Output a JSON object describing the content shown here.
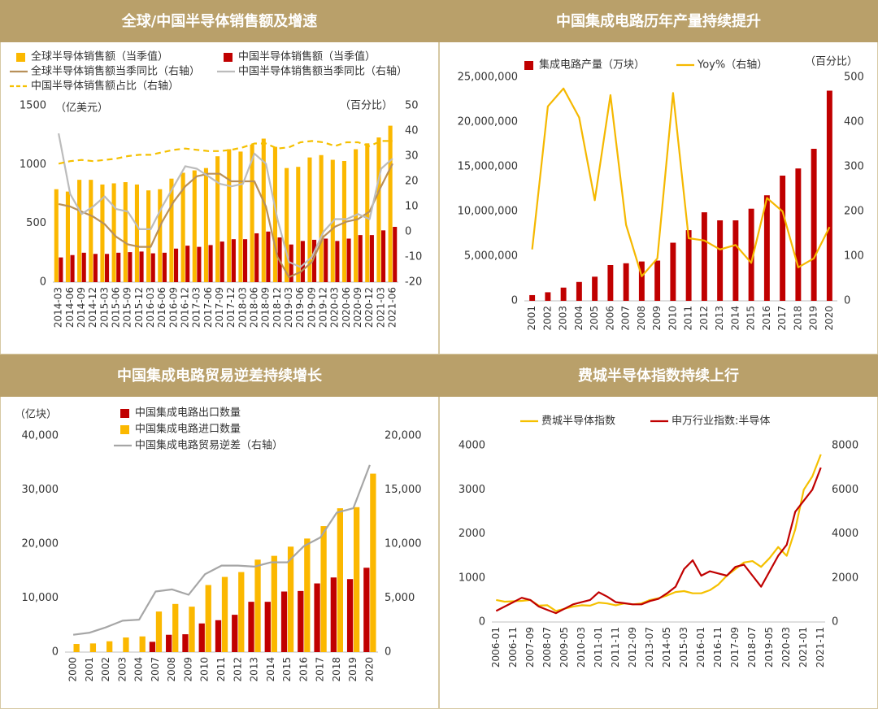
{
  "chart_data": [
    {
      "type": "bar-line",
      "title": "全球/中国半导体销售额及增速",
      "left_unit": "（亿美元）",
      "right_unit": "（百分比）",
      "categories": [
        "2014-03",
        "2014-06",
        "2014-09",
        "2014-12",
        "2015-03",
        "2015-06",
        "2015-09",
        "2015-12",
        "2016-03",
        "2016-06",
        "2016-09",
        "2016-12",
        "2017-03",
        "2017-06",
        "2017-09",
        "2017-12",
        "2018-03",
        "2018-06",
        "2018-09",
        "2018-12",
        "2019-03",
        "2019-06",
        "2019-09",
        "2019-12",
        "2020-03",
        "2020-06",
        "2020-09",
        "2020-12",
        "2021-03",
        "2021-06"
      ],
      "ylim": [
        0,
        1500
      ],
      "yticks": [
        0,
        500,
        1000,
        1500
      ],
      "y2lim": [
        -20,
        50
      ],
      "y2ticks": [
        -20,
        -10,
        0,
        10,
        20,
        30,
        40,
        50
      ],
      "series": [
        {
          "name": "全球半导体销售额（当季值）",
          "kind": "bar",
          "color": "#fbb800",
          "values": [
            790,
            770,
            870,
            870,
            830,
            840,
            850,
            830,
            780,
            790,
            880,
            930,
            950,
            970,
            1070,
            1130,
            1110,
            1170,
            1220,
            1150,
            970,
            980,
            1060,
            1080,
            1040,
            1030,
            1130,
            1180,
            1230,
            1330
          ]
        },
        {
          "name": "中国半导体销售额（当季值）",
          "kind": "bar",
          "color": "#c00000",
          "values": [
            210,
            230,
            250,
            240,
            240,
            250,
            255,
            260,
            245,
            250,
            285,
            310,
            300,
            315,
            345,
            365,
            365,
            415,
            430,
            380,
            320,
            350,
            360,
            370,
            350,
            370,
            400,
            400,
            440,
            470
          ]
        },
        {
          "name": "全球半导体销售额当季同比（右轴）",
          "kind": "line",
          "axis": "y2",
          "color": "#b8905a",
          "values": [
            11,
            10,
            8,
            6,
            3,
            -2,
            -5,
            -6,
            -6,
            4,
            12,
            18,
            22,
            23,
            23,
            20,
            20,
            20,
            10,
            -10,
            -18,
            -16,
            -12,
            -2,
            2,
            4,
            5,
            8,
            18,
            27
          ]
        },
        {
          "name": "中国半导体销售额当季同比（右轴）",
          "kind": "line",
          "axis": "y2",
          "color": "#bcbcbc",
          "values": [
            39,
            15,
            7,
            10,
            14,
            9,
            8,
            1,
            1,
            10,
            18,
            26,
            25,
            22,
            19,
            18,
            19,
            31,
            27,
            5,
            -12,
            -14,
            -10,
            0,
            5,
            5,
            7,
            5,
            25,
            29
          ]
        },
        {
          "name": "中国半导体销售额占比（右轴）",
          "kind": "line",
          "axis": "y2",
          "dash": true,
          "color": "#f5c000",
          "values": [
            27,
            28,
            28.5,
            28,
            28.5,
            29,
            30,
            30.5,
            30.5,
            31.5,
            32.5,
            33,
            32.5,
            32,
            32,
            32.5,
            33.5,
            35,
            35,
            33,
            33.5,
            35.5,
            36,
            35.5,
            34,
            35.5,
            35.5,
            34,
            36,
            36
          ]
        }
      ]
    },
    {
      "type": "bar-line",
      "title": "中国集成电路历年产量持续提升",
      "right_unit": "（百分比）",
      "categories": [
        "2001",
        "2002",
        "2003",
        "2004",
        "2005",
        "2006",
        "2007",
        "2008",
        "2009",
        "2010",
        "2011",
        "2012",
        "2013",
        "2014",
        "2015",
        "2016",
        "2017",
        "2018",
        "2019",
        "2020"
      ],
      "ylim": [
        0,
        25000000
      ],
      "yticks": [
        0,
        {
          "value": 5000000,
          "label": "5,000,000"
        },
        {
          "value": 10000000,
          "label": "10,000,000"
        },
        {
          "value": 15000000,
          "label": "15,000,000"
        },
        {
          "value": 20000000,
          "label": "20,000,000"
        },
        {
          "value": 25000000,
          "label": "25,000,000"
        }
      ],
      "y2lim": [
        0,
        500
      ],
      "y2ticks": [
        0,
        100,
        200,
        300,
        400,
        500
      ],
      "series": [
        {
          "name": "集成电路产量（万块）",
          "kind": "bar",
          "color": "#c00000",
          "values": [
            640000,
            960000,
            1480000,
            2110000,
            2700000,
            4000000,
            4200000,
            4400000,
            4500000,
            6500000,
            7900000,
            9900000,
            9000000,
            9000000,
            10300000,
            11800000,
            14000000,
            14800000,
            17000000,
            23500000
          ]
        },
        {
          "name": "Yoy%（右轴）",
          "kind": "line",
          "axis": "y2",
          "color": "#f5b800",
          "values": [
            115,
            435,
            475,
            410,
            225,
            460,
            170,
            55,
            95,
            465,
            140,
            135,
            115,
            125,
            85,
            230,
            200,
            75,
            95,
            165
          ]
        }
      ]
    },
    {
      "type": "bar-line",
      "title": "中国集成电路贸易逆差持续增长",
      "left_unit": "（亿块）",
      "categories": [
        "2000",
        "2001",
        "2002",
        "2003",
        "2004",
        "2007",
        "2008",
        "2009",
        "2010",
        "2011",
        "2012",
        "2013",
        "2014",
        "2015",
        "2016",
        "2017",
        "2018",
        "2019",
        "2020"
      ],
      "ylim": [
        0,
        40000
      ],
      "yticks": [
        0,
        {
          "value": 10000,
          "label": "10,000"
        },
        {
          "value": 20000,
          "label": "20,000"
        },
        {
          "value": 30000,
          "label": "30,000"
        },
        {
          "value": 40000,
          "label": "40,000"
        }
      ],
      "y2lim": [
        0,
        20000
      ],
      "y2ticks": [
        0,
        {
          "value": 5000,
          "label": "5,000"
        },
        {
          "value": 10000,
          "label": "10,000"
        },
        {
          "value": 15000,
          "label": "15,000"
        },
        {
          "value": 20000,
          "label": "20,000"
        }
      ],
      "series": [
        {
          "name": "中国集成电路出口数量",
          "kind": "bar",
          "color": "#c00000",
          "values": [
            null,
            null,
            null,
            null,
            null,
            1900,
            3200,
            3300,
            5300,
            5900,
            6900,
            9300,
            9300,
            11200,
            11300,
            12700,
            13800,
            13500,
            15600
          ]
        },
        {
          "name": "中国集成电路进口数量",
          "kind": "bar",
          "color": "#fbb800",
          "values": [
            1500,
            1600,
            2000,
            2700,
            2900,
            7500,
            8900,
            8400,
            12400,
            13900,
            14800,
            17100,
            17800,
            19500,
            21000,
            23300,
            26600,
            26800,
            33000
          ]
        },
        {
          "name": "中国集成电路贸易逆差（右轴）",
          "kind": "line",
          "axis": "y2",
          "color": "#a6a6a6",
          "values": [
            1600,
            1800,
            2300,
            2900,
            3000,
            5600,
            5800,
            5300,
            7200,
            8000,
            8000,
            7900,
            8300,
            8300,
            9800,
            10600,
            12900,
            13300,
            17300
          ]
        }
      ]
    },
    {
      "type": "line",
      "title": "费城半导体指数持续上行",
      "categories": [
        "2006-01",
        null,
        "2006-11",
        null,
        "2007-09",
        null,
        "2008-07",
        null,
        "2009-05",
        null,
        "2010-03",
        null,
        "2011-01",
        null,
        "2011-11",
        null,
        "2012-09",
        null,
        "2013-07",
        null,
        "2014-05",
        null,
        "2015-03",
        null,
        "2016-01",
        null,
        "2016-11",
        null,
        "2017-09",
        null,
        "2018-07",
        null,
        "2019-05",
        null,
        "2020-03",
        null,
        "2021-01",
        null,
        "2021-11"
      ],
      "ylim": [
        0,
        4000
      ],
      "yticks": [
        0,
        1000,
        2000,
        3000,
        4000
      ],
      "y2lim": [
        0,
        8000
      ],
      "y2ticks": [
        0,
        2000,
        4000,
        6000,
        8000
      ],
      "series": [
        {
          "name": "费城半导体指数",
          "kind": "line",
          "color": "#f5c000",
          "values": [
            500,
            460,
            470,
            480,
            500,
            370,
            380,
            250,
            300,
            350,
            380,
            370,
            440,
            420,
            380,
            420,
            400,
            420,
            500,
            540,
            600,
            680,
            700,
            650,
            650,
            720,
            850,
            1050,
            1200,
            1350,
            1380,
            1250,
            1450,
            1700,
            1500,
            2100,
            3000,
            3300,
            3800
          ]
        },
        {
          "name": "申万行业指数:半导体",
          "kind": "line",
          "axis": "y2",
          "color": "#c00000",
          "values": [
            500,
            700,
            900,
            1100,
            1000,
            700,
            550,
            400,
            600,
            800,
            900,
            1000,
            1350,
            1150,
            900,
            850,
            800,
            800,
            950,
            1050,
            1300,
            1600,
            2400,
            2800,
            2100,
            2300,
            2200,
            2100,
            2500,
            2600,
            2100,
            1600,
            2300,
            3000,
            3500,
            5000,
            5500,
            6000,
            7000
          ]
        }
      ]
    }
  ]
}
